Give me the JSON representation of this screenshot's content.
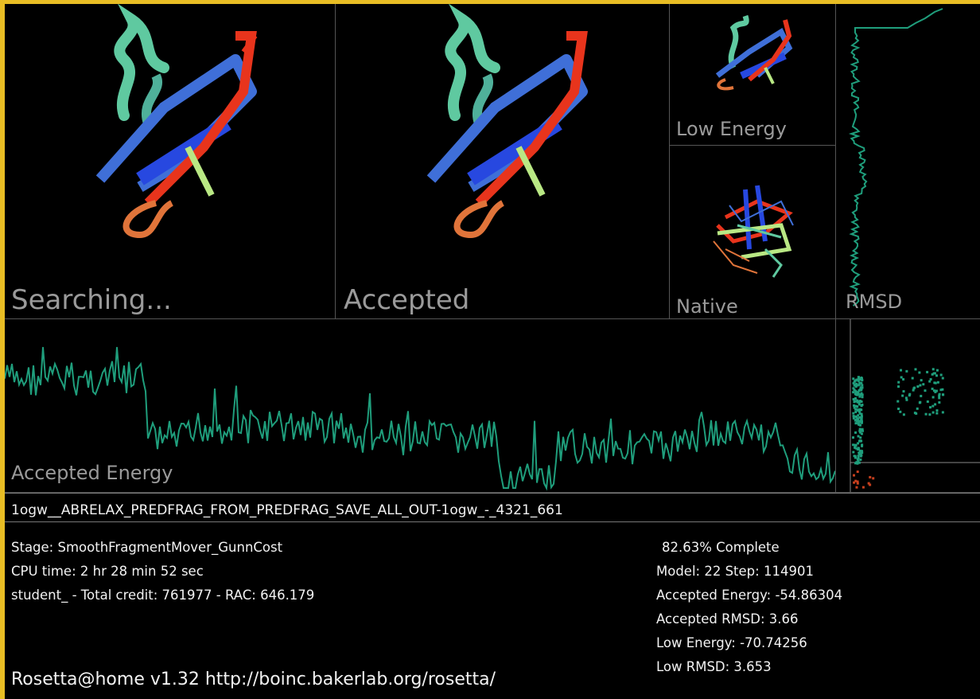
{
  "panels": {
    "searching": "Searching...",
    "accepted": "Accepted",
    "low_energy": "Low Energy",
    "native": "Native",
    "rmsd": "RMSD",
    "accepted_energy": "Accepted Energy"
  },
  "job_name": "1ogw__ABRELAX_PREDFRAG_FROM_PREDFRAG_SAVE_ALL_OUT-1ogw_-_4321_661",
  "status_left": {
    "stage": "Stage: SmoothFragmentMover_GunnCost",
    "cpu_time": "CPU time: 2 hr 28 min 52 sec",
    "credit": "student_ - Total credit: 761977 - RAC: 646.179"
  },
  "status_right": {
    "complete": "82.63% Complete",
    "model_step": "Model: 22  Step: 114901",
    "accepted_energy": "Accepted Energy: -54.86304",
    "accepted_rmsd": "Accepted RMSD:  3.66",
    "low_energy": "Low Energy: -70.74256",
    "low_rmsd": "Low RMSD:  3.653"
  },
  "footer": "Rosetta@home v1.32 http://boinc.bakerlab.org/rosetta/",
  "colors": {
    "border": "#e8bd24",
    "plot": "#1f9e7c",
    "plot_low": "#c8401e",
    "helix": "#5fc9a0",
    "strand_blue": "#2748e0",
    "strand_red": "#e8341c",
    "coil_orange": "#e0743a",
    "strand_green": "#b9e884"
  }
}
